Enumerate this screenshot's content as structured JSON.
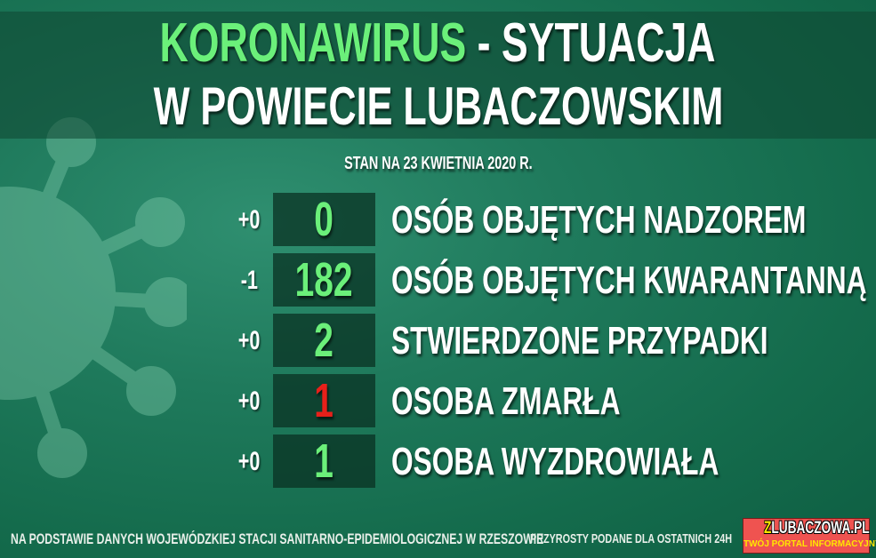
{
  "header": {
    "title_highlight": "KORONAWIRUS",
    "title_rest": " - SYTUACJA",
    "subtitle": "W POWIECIE LUBACZOWSKIM",
    "date": "STAN NA 23 KWIETNIA 2020 R."
  },
  "stats": [
    {
      "delta": "+0",
      "value": "0",
      "label": "OSÓB OBJĘTYCH NADZOREM",
      "color": "#6bf07a"
    },
    {
      "delta": "-1",
      "value": "182",
      "label": "OSÓB OBJĘTYCH KWARANTANNĄ",
      "color": "#6bf07a"
    },
    {
      "delta": "+0",
      "value": "2",
      "label": "STWIERDZONE PRZYPADKI",
      "color": "#6bf07a"
    },
    {
      "delta": "+0",
      "value": "1",
      "label": "OSOBA ZMARŁA",
      "color": "#e8201a"
    },
    {
      "delta": "+0",
      "value": "1",
      "label": "OSOBA WYZDROWIAŁA",
      "color": "#6bf07a"
    }
  ],
  "footer": {
    "source": "NA PODSTAWIE DANYCH WOJEWÓDZKIEJ STACJI SANITARNO-EPIDEMIOLOGICZNEJ W RZESZOWIE",
    "note": "PRZYROSTY PODANE DLA OSTATNICH 24H"
  },
  "logo": {
    "first_letter": "Z",
    "name_rest": "LUBACZOWA.PL",
    "tagline": "TWÓJ PORTAL INFORMACYJNY"
  },
  "icons": {
    "background": "coronavirus-icon"
  }
}
